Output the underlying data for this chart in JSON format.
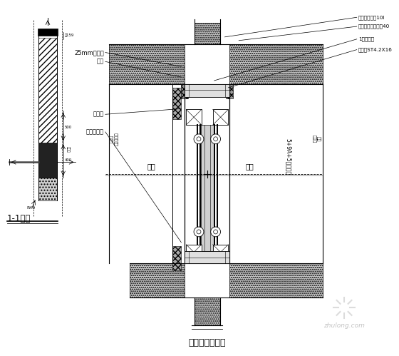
{
  "bg_color": "#ffffff",
  "title": "推拉窗节点大样",
  "subtitle_left": "1-1剖面",
  "watermark": "zhulong.com",
  "ann_right": [
    "距边缘不大于10l",
    "两拉片距离不大于40",
    "1英寸射钉",
    "自攻钉ST4.2X16"
  ],
  "ann_left": [
    "25mm保温层",
    "滴水",
    "发泡剂",
    "墙体密封胶"
  ]
}
